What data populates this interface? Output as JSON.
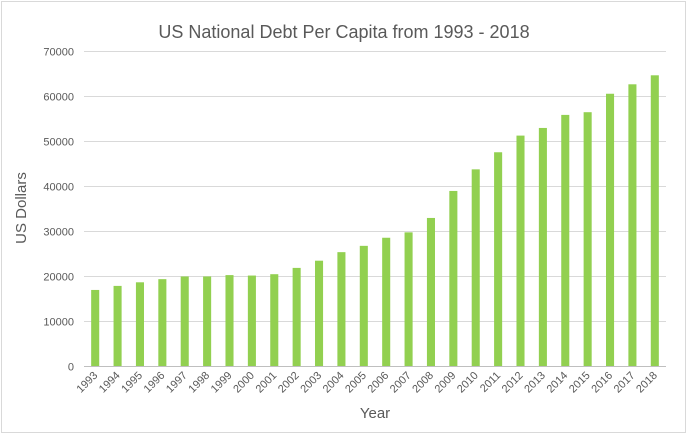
{
  "chart_data": {
    "type": "bar",
    "title": "US National Debt Per Capita from 1993 - 2018",
    "xlabel": "Year",
    "ylabel": "US Dollars",
    "ylim": [
      0,
      70000
    ],
    "yticks": [
      0,
      10000,
      20000,
      30000,
      40000,
      50000,
      60000,
      70000
    ],
    "grid": true,
    "legend": "none",
    "bar_color": "#92d050",
    "categories": [
      "1993",
      "1994",
      "1995",
      "1996",
      "1997",
      "1998",
      "1999",
      "2000",
      "2001",
      "2002",
      "2003",
      "2004",
      "2005",
      "2006",
      "2007",
      "2008",
      "2009",
      "2010",
      "2011",
      "2012",
      "2013",
      "2014",
      "2015",
      "2016",
      "2017",
      "2018"
    ],
    "values": [
      16900,
      17800,
      18600,
      19300,
      19900,
      19900,
      20200,
      20100,
      20400,
      21800,
      23400,
      25300,
      26700,
      28500,
      29700,
      32900,
      38900,
      43700,
      47500,
      51200,
      52900,
      55800,
      56400,
      60500,
      62600,
      64600
    ]
  }
}
